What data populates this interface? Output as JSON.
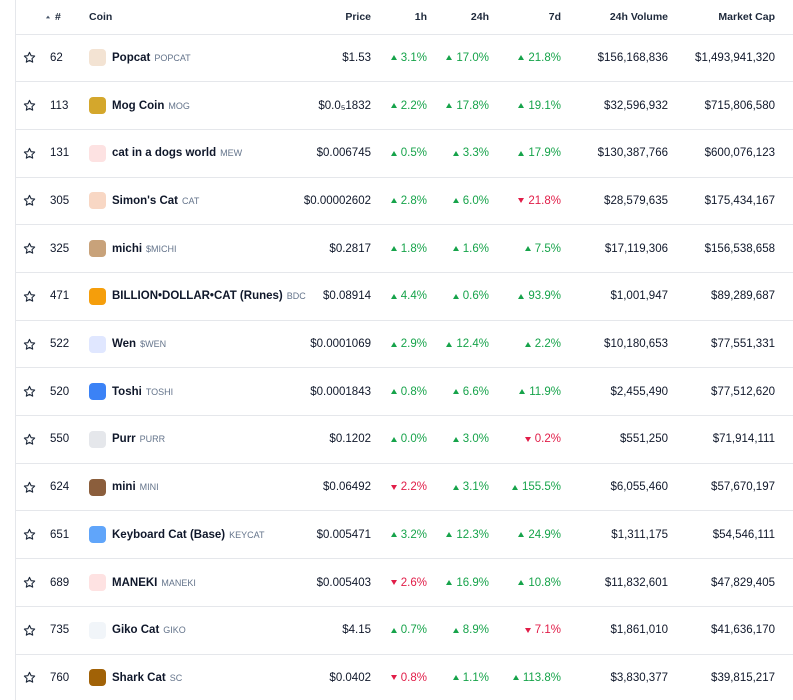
{
  "table": {
    "columns": [
      "#",
      "Coin",
      "Price",
      "1h",
      "24h",
      "7d",
      "24h Volume",
      "Market Cap"
    ],
    "rows": [
      {
        "rank": 62,
        "name": "Popcat",
        "symbol": "POPCAT",
        "price": "$1.53",
        "h1": {
          "text": "3.1%",
          "direction": "up"
        },
        "h24": {
          "text": "17.0%",
          "direction": "up"
        },
        "d7": {
          "text": "21.8%",
          "direction": "up"
        },
        "volume": "$156,168,836",
        "market_cap": "$1,493,941,320"
      },
      {
        "rank": 113,
        "name": "Mog Coin",
        "symbol": "MOG",
        "price": "$0.0₅1832",
        "h1": {
          "text": "2.2%",
          "direction": "up"
        },
        "h24": {
          "text": "17.8%",
          "direction": "up"
        },
        "d7": {
          "text": "19.1%",
          "direction": "up"
        },
        "volume": "$32,596,932",
        "market_cap": "$715,806,580"
      },
      {
        "rank": 131,
        "name": "cat in a dogs world",
        "symbol": "MEW",
        "price": "$0.006745",
        "h1": {
          "text": "0.5%",
          "direction": "up"
        },
        "h24": {
          "text": "3.3%",
          "direction": "up"
        },
        "d7": {
          "text": "17.9%",
          "direction": "up"
        },
        "volume": "$130,387,766",
        "market_cap": "$600,076,123"
      },
      {
        "rank": 305,
        "name": "Simon's Cat",
        "symbol": "CAT",
        "price": "$0.00002602",
        "h1": {
          "text": "2.8%",
          "direction": "up"
        },
        "h24": {
          "text": "6.0%",
          "direction": "up"
        },
        "d7": {
          "text": "21.8%",
          "direction": "down"
        },
        "volume": "$28,579,635",
        "market_cap": "$175,434,167"
      },
      {
        "rank": 325,
        "name": "michi",
        "symbol": "$MICHI",
        "price": "$0.2817",
        "h1": {
          "text": "1.8%",
          "direction": "up"
        },
        "h24": {
          "text": "1.6%",
          "direction": "up"
        },
        "d7": {
          "text": "7.5%",
          "direction": "up"
        },
        "volume": "$17,119,306",
        "market_cap": "$156,538,658"
      },
      {
        "rank": 471,
        "name": "BILLION•DOLLAR•CAT (Runes)",
        "symbol": "BDC",
        "price": "$0.08914",
        "h1": {
          "text": "4.4%",
          "direction": "up"
        },
        "h24": {
          "text": "0.6%",
          "direction": "up"
        },
        "d7": {
          "text": "93.9%",
          "direction": "up"
        },
        "volume": "$1,001,947",
        "market_cap": "$89,289,687"
      },
      {
        "rank": 522,
        "name": "Wen",
        "symbol": "$WEN",
        "price": "$0.0001069",
        "h1": {
          "text": "2.9%",
          "direction": "up"
        },
        "h24": {
          "text": "12.4%",
          "direction": "up"
        },
        "d7": {
          "text": "2.2%",
          "direction": "up"
        },
        "volume": "$10,180,653",
        "market_cap": "$77,551,331"
      },
      {
        "rank": 520,
        "name": "Toshi",
        "symbol": "TOSHI",
        "price": "$0.0001843",
        "h1": {
          "text": "0.8%",
          "direction": "up"
        },
        "h24": {
          "text": "6.6%",
          "direction": "up"
        },
        "d7": {
          "text": "11.9%",
          "direction": "up"
        },
        "volume": "$2,455,490",
        "market_cap": "$77,512,620"
      },
      {
        "rank": 550,
        "name": "Purr",
        "symbol": "PURR",
        "price": "$0.1202",
        "h1": {
          "text": "0.0%",
          "direction": "up"
        },
        "h24": {
          "text": "3.0%",
          "direction": "up"
        },
        "d7": {
          "text": "0.2%",
          "direction": "down"
        },
        "volume": "$551,250",
        "market_cap": "$71,914,111"
      },
      {
        "rank": 624,
        "name": "mini",
        "symbol": "MINI",
        "price": "$0.06492",
        "h1": {
          "text": "2.2%",
          "direction": "down"
        },
        "h24": {
          "text": "3.1%",
          "direction": "up"
        },
        "d7": {
          "text": "155.5%",
          "direction": "up"
        },
        "volume": "$6,055,460",
        "market_cap": "$57,670,197"
      },
      {
        "rank": 651,
        "name": "Keyboard Cat (Base)",
        "symbol": "KEYCAT",
        "price": "$0.005471",
        "h1": {
          "text": "3.2%",
          "direction": "up"
        },
        "h24": {
          "text": "12.3%",
          "direction": "up"
        },
        "d7": {
          "text": "24.9%",
          "direction": "up"
        },
        "volume": "$1,311,175",
        "market_cap": "$54,546,111"
      },
      {
        "rank": 689,
        "name": "MANEKI",
        "symbol": "MANEKI",
        "price": "$0.005403",
        "h1": {
          "text": "2.6%",
          "direction": "down"
        },
        "h24": {
          "text": "16.9%",
          "direction": "up"
        },
        "d7": {
          "text": "10.8%",
          "direction": "up"
        },
        "volume": "$11,832,601",
        "market_cap": "$47,829,405"
      },
      {
        "rank": 735,
        "name": "Giko Cat",
        "symbol": "GIKO",
        "price": "$4.15",
        "h1": {
          "text": "0.7%",
          "direction": "up"
        },
        "h24": {
          "text": "8.9%",
          "direction": "up"
        },
        "d7": {
          "text": "7.1%",
          "direction": "down"
        },
        "volume": "$1,861,010",
        "market_cap": "$41,636,170"
      },
      {
        "rank": 760,
        "name": "Shark Cat",
        "symbol": "SC",
        "price": "$0.0402",
        "h1": {
          "text": "0.8%",
          "direction": "down"
        },
        "h24": {
          "text": "1.1%",
          "direction": "up"
        },
        "d7": {
          "text": "113.8%",
          "direction": "up"
        },
        "volume": "$3,830,377",
        "market_cap": "$39,815,217"
      }
    ]
  }
}
